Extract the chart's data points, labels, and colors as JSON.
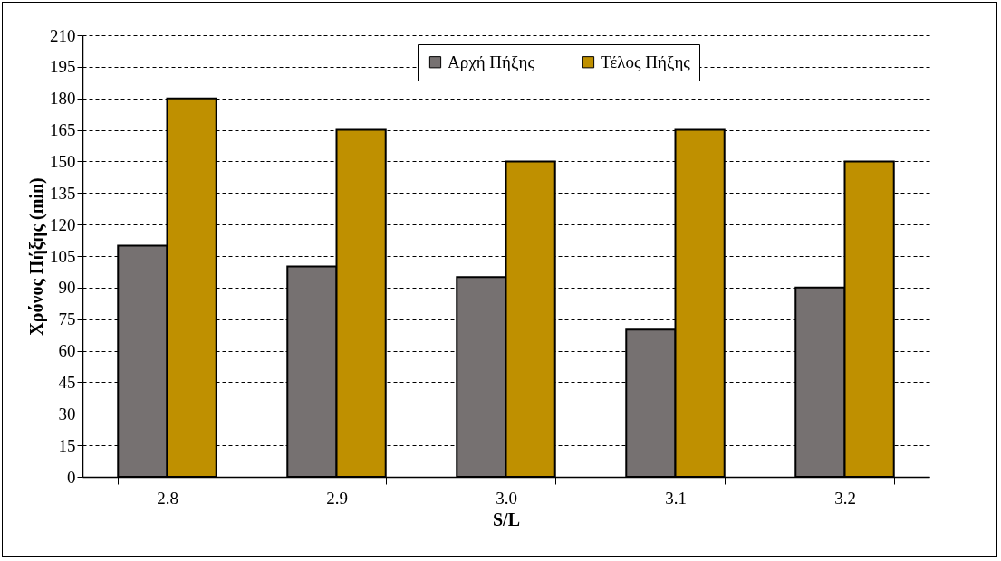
{
  "chart_data": {
    "type": "bar",
    "xlabel": "S/L",
    "ylabel": "Χρόνος Πήξης (min)",
    "categories": [
      "2.8",
      "2.9",
      "3.0",
      "3.1",
      "3.2"
    ],
    "series": [
      {
        "name": "Αρχή Πήξης",
        "color": "#767171",
        "values": [
          110,
          100,
          95,
          70,
          90
        ]
      },
      {
        "name": "Τέλος Πήξης",
        "color": "#bf9000",
        "values": [
          180,
          165,
          150,
          165,
          150
        ]
      }
    ],
    "ylim": [
      0,
      210
    ],
    "yticks": [
      0,
      15,
      30,
      45,
      60,
      75,
      90,
      105,
      120,
      135,
      150,
      165,
      180,
      195,
      210
    ],
    "grid": "y",
    "legend": "top"
  }
}
